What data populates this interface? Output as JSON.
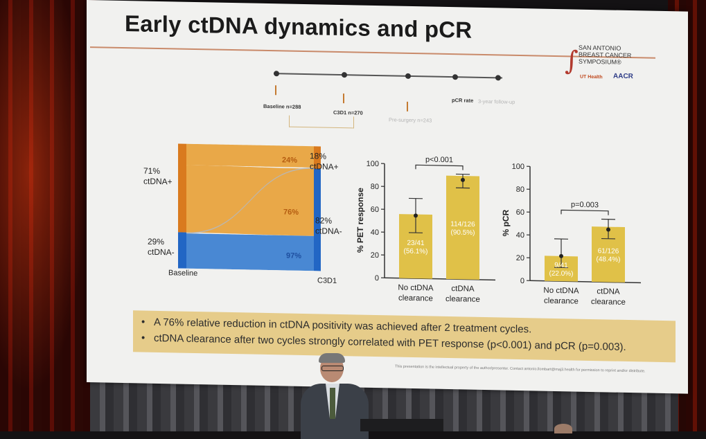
{
  "slide": {
    "title": "Early ctDNA dynamics and pCR",
    "logo": {
      "name_lines": [
        "SAN ANTONIO",
        "BREAST CANCER",
        "SYMPOSIUM®"
      ],
      "ut_health": "UT Health",
      "aacr": "AACR"
    },
    "timeline": {
      "baseline": "Baseline n=288",
      "c3d1": "C3D1 n=270",
      "pre_surgery": "Pre-surgery n=243",
      "pcr_rate": "pCR rate",
      "follow_up": "3-year follow-up"
    },
    "bullets": [
      "A 76% relative reduction in ctDNA positivity was achieved after 2 treatment cycles.",
      "ctDNA clearance after two cycles strongly correlated with PET response (p<0.001) and pCR (p=0.003)."
    ],
    "footnote": "This presentation is the intellectual property of the author/presenter. Contact antonio.llombart@maj3.health for permission to reprint and/or distribute.",
    "colors": {
      "orange": "#e8a23a",
      "orange_dark": "#d97a1e",
      "blue": "#3b7fd0",
      "blue_dark": "#2266c4",
      "gold": "#e0c148"
    }
  },
  "chart_data": [
    {
      "type": "sankey",
      "left_label": "Baseline",
      "right_label": "C3D1",
      "nodes_left": [
        {
          "pct": "71%",
          "label": "ctDNA+"
        },
        {
          "pct": "29%",
          "label": "ctDNA-"
        }
      ],
      "nodes_right": [
        {
          "pct": "18%",
          "label": "ctDNA+"
        },
        {
          "pct": "82%",
          "label": "ctDNA-"
        }
      ],
      "flows": [
        {
          "from": "ctDNA+",
          "to": "ctDNA+",
          "value": 24,
          "label": "24%"
        },
        {
          "from": "ctDNA+",
          "to": "ctDNA-",
          "value": 76,
          "label": "76%"
        },
        {
          "from": "ctDNA-",
          "to": "ctDNA-",
          "value": 97,
          "label": "97%"
        },
        {
          "from": "ctDNA-",
          "to": "ctDNA+",
          "value": 3,
          "label": ""
        }
      ]
    },
    {
      "type": "bar",
      "ylabel": "% PET response",
      "ylim": [
        0,
        100
      ],
      "yticks": [
        0,
        20,
        40,
        60,
        80,
        100
      ],
      "categories": [
        [
          "No ctDNA",
          "clearance"
        ],
        [
          "ctDNA",
          "clearance"
        ]
      ],
      "values": [
        56.1,
        90.5
      ],
      "err_low": [
        40,
        80
      ],
      "err_high": [
        70,
        92
      ],
      "point": [
        55,
        87
      ],
      "bar_labels": [
        [
          "23/41",
          "(56.1%)"
        ],
        [
          "114/126",
          "(90.5%)"
        ]
      ],
      "pvalue": "p<0.001"
    },
    {
      "type": "bar",
      "ylabel": "% pCR",
      "ylim": [
        0,
        100
      ],
      "yticks": [
        0,
        20,
        40,
        60,
        80,
        100
      ],
      "categories": [
        [
          "No ctDNA",
          "clearance"
        ],
        [
          "ctDNA",
          "clearance"
        ]
      ],
      "values": [
        22.0,
        48.4
      ],
      "err_low": [
        12,
        38
      ],
      "err_high": [
        37,
        55
      ],
      "point": [
        22,
        46
      ],
      "bar_labels": [
        [
          "9/41",
          "(22.0%)"
        ],
        [
          "61/126",
          "(48.4%)"
        ]
      ],
      "pvalue": "p=0.003"
    }
  ]
}
